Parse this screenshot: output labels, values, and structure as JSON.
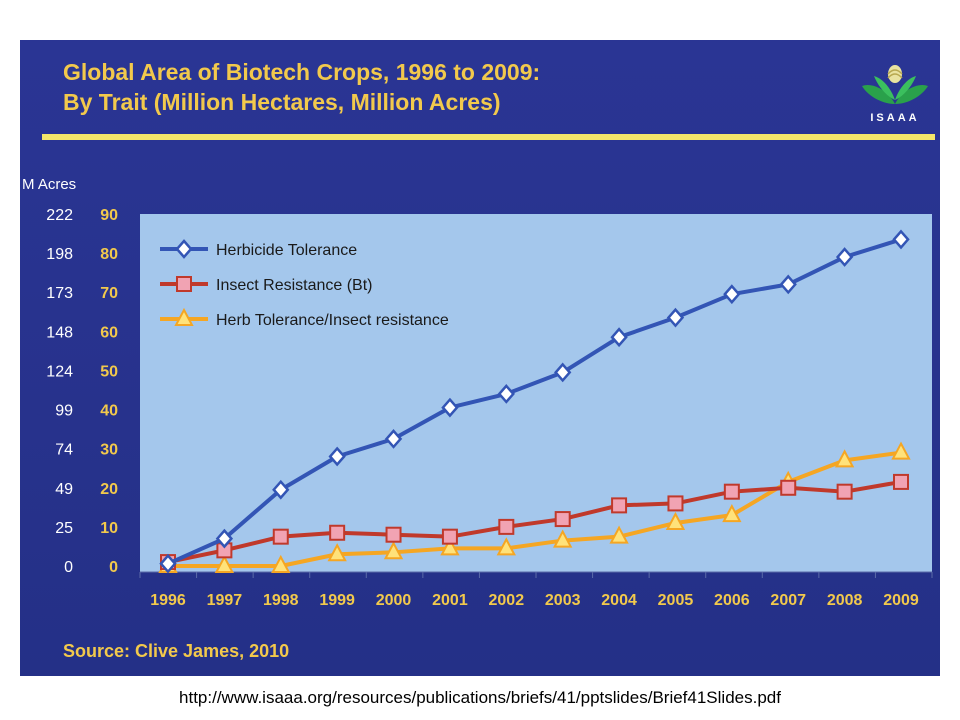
{
  "slide": {
    "title_line1": "Global Area of Biotech Crops, 1996 to 2009:",
    "title_line2": "By Trait (Million Hectares, Million Acres)",
    "source": "Source: Clive James, 2010",
    "logo_text": "ISAAA"
  },
  "footer": {
    "url": "http://www.isaaa.org/resources/publications/briefs/41/pptslides/Brief41Slides.pdf"
  },
  "colors": {
    "slide_bg": "#27318a",
    "plot_bg": "#a4c7ec",
    "title": "#f2c94c",
    "herbicide": "#3355b5",
    "insect": "#c0392b",
    "stacked": "#f5a623"
  },
  "chart_data": {
    "type": "line",
    "categories": [
      "1996",
      "1997",
      "1998",
      "1999",
      "2000",
      "2001",
      "2002",
      "2003",
      "2004",
      "2005",
      "2006",
      "2007",
      "2008",
      "2009"
    ],
    "y_left_label": "",
    "y_right_label": "M Acres",
    "ylim": [
      0,
      90
    ],
    "y_ticks": [
      0,
      10,
      20,
      30,
      40,
      50,
      60,
      70,
      80,
      90
    ],
    "y_acres_ticks": [
      "0",
      "25",
      "49",
      "74",
      "99",
      "124",
      "148",
      "173",
      "198",
      "222"
    ],
    "grid": false,
    "legend_position": "top-left",
    "series": [
      {
        "name": "Herbicide Tolerance",
        "marker": "diamond",
        "color": "#3355b5",
        "values": [
          0.6,
          7,
          19.5,
          28,
          32.5,
          40.5,
          44,
          49.5,
          58.5,
          63.5,
          69.5,
          72,
          79,
          83.5
        ]
      },
      {
        "name": "Insect Resistance (Bt)",
        "marker": "square",
        "color": "#c0392b",
        "values": [
          1,
          4,
          7.5,
          8.5,
          8,
          7.5,
          10,
          12,
          15.5,
          16,
          19,
          20,
          19,
          21.5
        ]
      },
      {
        "name": "Herb Tolerance/Insect resistance",
        "marker": "triangle",
        "color": "#f5a623",
        "values": [
          0,
          0,
          0,
          3,
          3.5,
          4.5,
          4.5,
          6.5,
          7.5,
          11,
          13,
          21.5,
          27,
          29
        ]
      }
    ]
  }
}
